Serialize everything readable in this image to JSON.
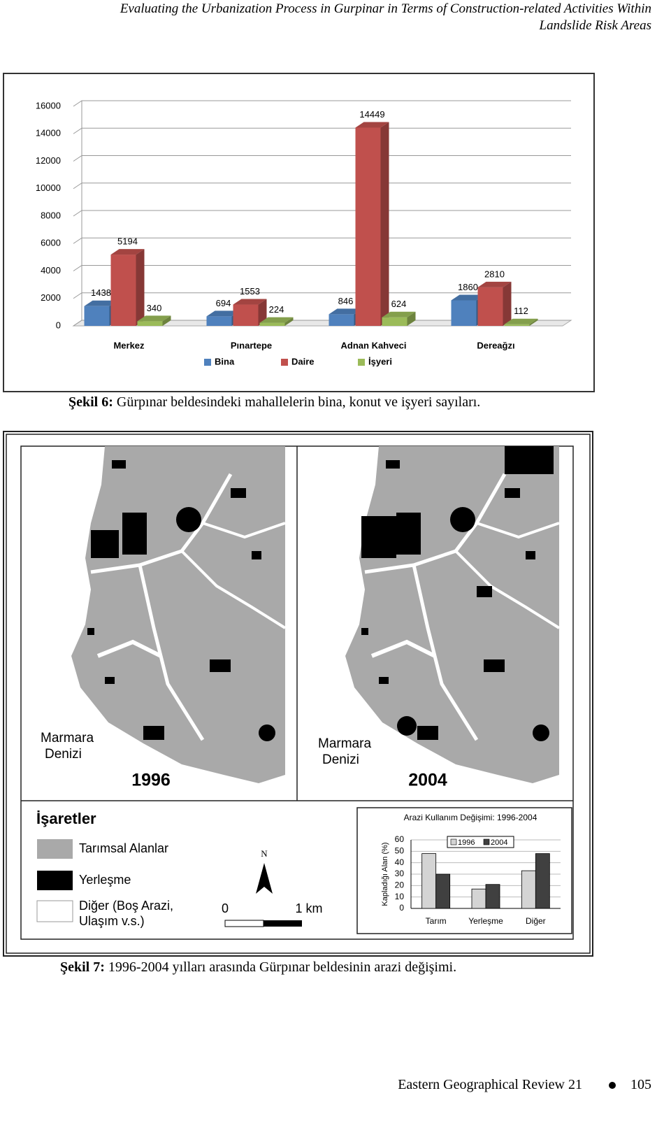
{
  "header": {
    "lines": [
      "Evaluating the Urbanization Process in Gurpinar in Terms of Construction-related Activities Within",
      "Landslide Risk Areas"
    ]
  },
  "chart_data": [
    {
      "type": "bar3d",
      "categories": [
        "Merkez",
        "Pınartepe",
        "Adnan Kahveci",
        "Dereağzı"
      ],
      "series": [
        {
          "name": "Bina",
          "color": "#4f81bd",
          "values": [
            1438,
            694,
            846,
            1860
          ]
        },
        {
          "name": "Daire",
          "color": "#c0504d",
          "values": [
            5194,
            1553,
            14449,
            2810
          ]
        },
        {
          "name": "İşyeri",
          "color": "#9bbb59",
          "values": [
            340,
            224,
            624,
            112
          ]
        }
      ],
      "ylim": [
        0,
        16000
      ],
      "yticks": [
        0,
        2000,
        4000,
        6000,
        8000,
        10000,
        12000,
        14000,
        16000
      ],
      "grid": true,
      "data_labels": true,
      "legend": "bottom"
    },
    {
      "type": "bar",
      "title": "Arazi Kullanım Değişimi: 1996-2004",
      "y_label": "Kapladığı Alan (%)",
      "categories": [
        "Tarım",
        "Yerleşme",
        "Diğer"
      ],
      "series": [
        {
          "name": "1996",
          "color": "#d4d4d4",
          "values": [
            48,
            17,
            33
          ]
        },
        {
          "name": "2004",
          "color": "#404040",
          "values": [
            30,
            21,
            48
          ]
        }
      ],
      "ylim": [
        0,
        60
      ],
      "yticks": [
        0,
        10,
        20,
        30,
        40,
        50,
        60
      ],
      "grid": true,
      "legend": "top"
    }
  ],
  "captions": [
    {
      "label": "Şekil 6:",
      "text": "Gürpınar beldesindeki mahallelerin bina, konut ve işyeri sayıları."
    },
    {
      "label": "Şekil 7:",
      "text": "1996-2004 yılları arasında Gürpınar beldesinin arazi değişimi."
    }
  ],
  "map": {
    "panels": [
      {
        "sea_label": [
          "Marmara",
          "Denizi"
        ],
        "year": "1996"
      },
      {
        "sea_label": [
          "Marmara",
          "Denizi"
        ],
        "year": "2004"
      }
    ],
    "legend": {
      "title": "İşaretler",
      "items": [
        [
          "Tarımsal Alanlar"
        ],
        [
          "Yerleşme"
        ],
        [
          "Diğer (Boş Arazi,",
          "Ulaşım v.s.)"
        ]
      ]
    },
    "north": "N",
    "scale": {
      "start": "0",
      "end": "1 km"
    }
  },
  "footer": {
    "journal": "Eastern Geographical Review 21",
    "page": "105"
  }
}
